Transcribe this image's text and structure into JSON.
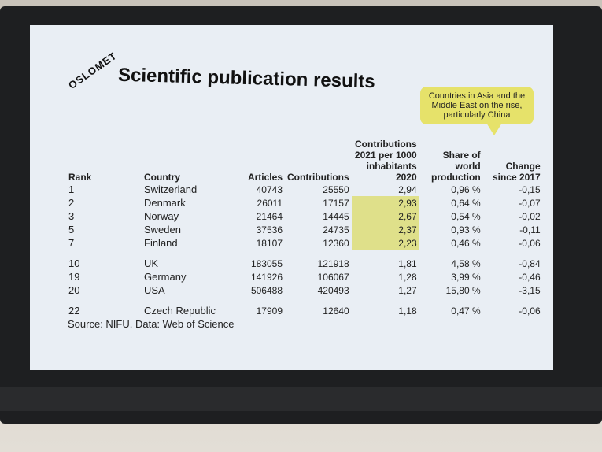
{
  "logo": "OSLOMET",
  "title": "Scientific publication results",
  "callout": "Countries in Asia and the Middle East on the rise, particularly China",
  "table": {
    "headers": [
      "Rank",
      "Country",
      "Articles",
      "Contributions",
      "Contributions 2021 per 1000 inhabitants 2020",
      "Share of world production",
      "Change since 2017"
    ],
    "rows": [
      [
        "1",
        "Switzerland",
        "40743",
        "25550",
        "2,94",
        "0,96 %",
        "-0,15"
      ],
      [
        "2",
        "Denmark",
        "26011",
        "17157",
        "2,93",
        "0,64 %",
        "-0,07"
      ],
      [
        "3",
        "Norway",
        "21464",
        "14445",
        "2,67",
        "0,54 %",
        "-0,02"
      ],
      [
        "5",
        "Sweden",
        "37536",
        "24735",
        "2,37",
        "0,93 %",
        "-0,11"
      ],
      [
        "7",
        "Finland",
        "18107",
        "12360",
        "2,23",
        "0,46 %",
        "-0,06"
      ],
      [
        "10",
        "UK",
        "183055",
        "121918",
        "1,81",
        "4,58 %",
        "-0,84"
      ],
      [
        "19",
        "Germany",
        "141926",
        "106067",
        "1,28",
        "3,99 %",
        "-0,46"
      ],
      [
        "20",
        "USA",
        "506488",
        "420493",
        "1,27",
        "15,80 %",
        "-3,15"
      ],
      [
        "22",
        "Czech Republic",
        "17909",
        "12640",
        "1,18",
        "0,47 %",
        "-0,06"
      ]
    ]
  },
  "source": "Source: NIFU. Data: Web of Science"
}
